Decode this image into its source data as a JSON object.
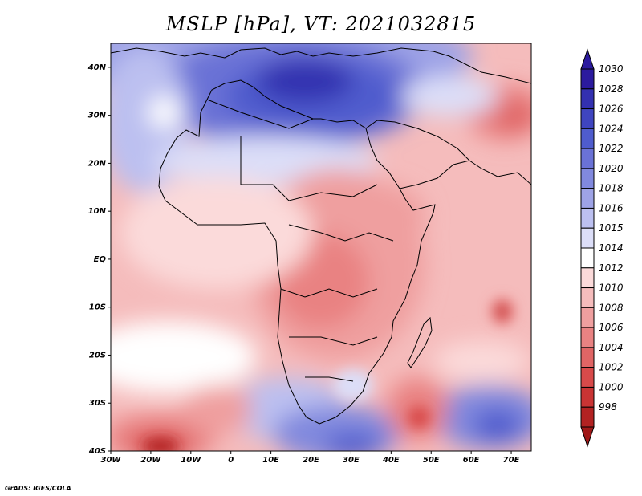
{
  "title": "MSLP [hPa], VT: 2021032815",
  "credit": "GrADS: IGES/COLA",
  "map": {
    "variable": "Mean sea level pressure",
    "units": "hPa",
    "valid_time": "2021032815",
    "lon_range": [
      -30,
      75
    ],
    "lat_range": [
      -40,
      45
    ],
    "lat_ticks": [
      {
        "value": 40,
        "label": "40N"
      },
      {
        "value": 30,
        "label": "30N"
      },
      {
        "value": 20,
        "label": "20N"
      },
      {
        "value": 10,
        "label": "10N"
      },
      {
        "value": 0,
        "label": "EQ"
      },
      {
        "value": -10,
        "label": "10S"
      },
      {
        "value": -20,
        "label": "20S"
      },
      {
        "value": -30,
        "label": "30S"
      },
      {
        "value": -40,
        "label": "40S"
      }
    ],
    "lon_ticks": [
      {
        "value": -30,
        "label": "30W"
      },
      {
        "value": -20,
        "label": "20W"
      },
      {
        "value": -10,
        "label": "10W"
      },
      {
        "value": 0,
        "label": "0"
      },
      {
        "value": 10,
        "label": "10E"
      },
      {
        "value": 20,
        "label": "20E"
      },
      {
        "value": 30,
        "label": "30E"
      },
      {
        "value": 40,
        "label": "40E"
      },
      {
        "value": 50,
        "label": "50E"
      },
      {
        "value": 60,
        "label": "60E"
      },
      {
        "value": 70,
        "label": "70E"
      }
    ]
  },
  "colorbar": {
    "levels": [
      {
        "label": "1030",
        "color": "#2b1a9e"
      },
      {
        "label": "1028",
        "color": "#3330b0"
      },
      {
        "label": "1026",
        "color": "#3f45c0"
      },
      {
        "label": "1024",
        "color": "#4f5ccd"
      },
      {
        "label": "1022",
        "color": "#6a72d6"
      },
      {
        "label": "1020",
        "color": "#8189de"
      },
      {
        "label": "1018",
        "color": "#9ea3e6"
      },
      {
        "label": "1016",
        "color": "#bcc0f0"
      },
      {
        "label": "1015",
        "color": "#dcdef8"
      },
      {
        "label": "1014",
        "color": "#ffffff"
      },
      {
        "label": "1012",
        "color": "#fbdada"
      },
      {
        "label": "1010",
        "color": "#f5bcbc"
      },
      {
        "label": "1008",
        "color": "#ef9f9f"
      },
      {
        "label": "1006",
        "color": "#e98282"
      },
      {
        "label": "1004",
        "color": "#e06565"
      },
      {
        "label": "1002",
        "color": "#d84a4a"
      },
      {
        "label": "1000",
        "color": "#c93434"
      },
      {
        "label": "998",
        "color": "#b22222"
      }
    ],
    "bottom_color": "#a01818"
  }
}
